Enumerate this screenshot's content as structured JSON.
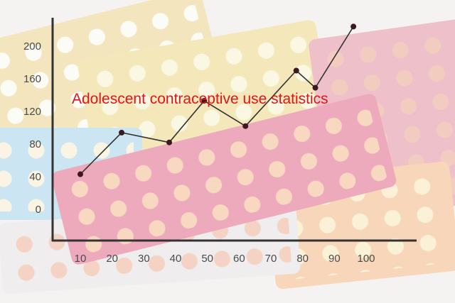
{
  "chart_data": {
    "type": "line",
    "title": "Adolescent contraceptive use statistics",
    "xlabel": "",
    "ylabel": "",
    "x_ticks": [
      10,
      20,
      30,
      40,
      50,
      60,
      70,
      80,
      90,
      100
    ],
    "y_ticks": [
      0,
      40,
      80,
      120,
      160,
      200
    ],
    "xlim": [
      10,
      100
    ],
    "ylim": [
      0,
      200
    ],
    "grid": false,
    "x": [
      10,
      23,
      38,
      49,
      62,
      78,
      84,
      96
    ],
    "y": [
      43,
      94,
      82,
      133,
      102,
      170,
      149,
      224
    ],
    "colors": {
      "line": "#333333",
      "marker": "#3a1a20",
      "title": "#e0141a",
      "axis": "#333333"
    }
  },
  "background": {
    "description_colors": [
      "#f2dc9c",
      "#e27a97",
      "#a8d4ec",
      "#f4c3a4",
      "#e7e7e7"
    ]
  }
}
